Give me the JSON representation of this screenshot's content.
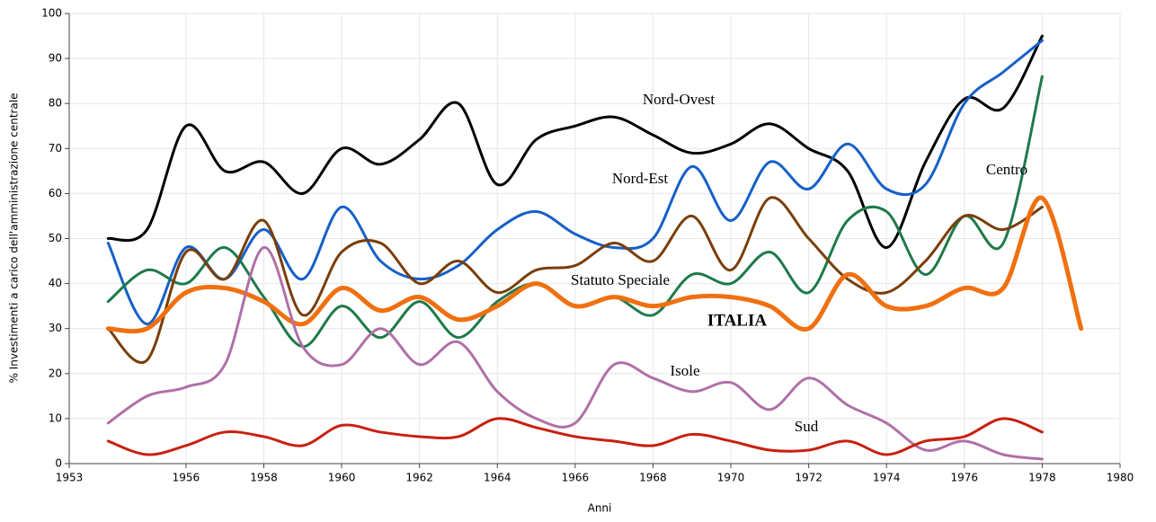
{
  "chart_data": {
    "type": "line",
    "x_label": "Anni",
    "y_label": "% Investimenti a carico dell'amministrazione centrale",
    "x": [
      1954,
      1955,
      1956,
      1957,
      1958,
      1959,
      1960,
      1961,
      1962,
      1963,
      1964,
      1965,
      1966,
      1967,
      1968,
      1969,
      1970,
      1971,
      1972,
      1973,
      1974,
      1975,
      1976,
      1977,
      1978,
      1979
    ],
    "series": [
      {
        "name": "Nord-Ovest",
        "color": "#000000",
        "values": [
          50,
          52,
          75,
          65,
          67,
          60,
          70,
          66.5,
          72,
          80,
          62,
          72,
          75,
          77,
          73,
          69,
          71,
          75.5,
          70,
          65,
          48,
          67,
          81,
          79,
          95,
          null
        ]
      },
      {
        "name": "Nord-Est",
        "color": "#1560c8",
        "values": [
          49,
          31,
          48,
          41,
          52,
          41,
          57,
          45,
          41,
          44,
          52,
          56,
          51,
          48,
          50,
          66,
          54,
          67,
          61,
          71,
          61,
          62,
          80,
          87,
          94,
          null
        ]
      },
      {
        "name": "Centro",
        "color": "#1e7a4a",
        "values": [
          36,
          43,
          40,
          48,
          37,
          26,
          35,
          28,
          36,
          28,
          36,
          40,
          35,
          37,
          33,
          42,
          40,
          47,
          38,
          54,
          56,
          42,
          55,
          49,
          86,
          null
        ]
      },
      {
        "name": "Statuto Speciale",
        "color": "#7a3e0a",
        "values": [
          30,
          23,
          47,
          41,
          54,
          33,
          47,
          49,
          40,
          45,
          38,
          43,
          44,
          49,
          45,
          55,
          43,
          59,
          50,
          41,
          38,
          45,
          55,
          52,
          57,
          null
        ]
      },
      {
        "name": "ITALIA",
        "color": "#f07010",
        "values": [
          30,
          30,
          38,
          39,
          36,
          31,
          39,
          34,
          37,
          32,
          35,
          40,
          35,
          37,
          35,
          37,
          37,
          35,
          30,
          42,
          35,
          35,
          39,
          39,
          59,
          30
        ]
      },
      {
        "name": "Isole",
        "color": "#b070a8",
        "values": [
          9,
          15,
          17,
          22,
          48,
          26,
          22,
          30,
          22,
          27,
          16,
          10,
          9,
          22,
          19,
          16,
          18,
          12,
          19,
          13,
          9,
          3,
          5,
          2,
          1,
          null
        ]
      },
      {
        "name": "Sud",
        "color": "#c82010",
        "values": [
          5,
          2,
          4,
          7,
          6,
          4,
          8.5,
          7,
          6,
          6,
          10,
          8,
          6,
          5,
          4,
          6.5,
          5,
          3,
          3,
          5,
          2,
          5,
          6,
          10,
          7,
          null
        ]
      }
    ],
    "xlim": [
      1953,
      1980
    ],
    "xticks": [
      1953,
      1956,
      1958,
      1960,
      1962,
      1964,
      1966,
      1968,
      1970,
      1972,
      1974,
      1976,
      1978,
      1980
    ],
    "ylim": [
      0,
      100
    ],
    "yticks": [
      0,
      10,
      20,
      30,
      40,
      50,
      60,
      70,
      80,
      90,
      100
    ],
    "grid": true
  }
}
